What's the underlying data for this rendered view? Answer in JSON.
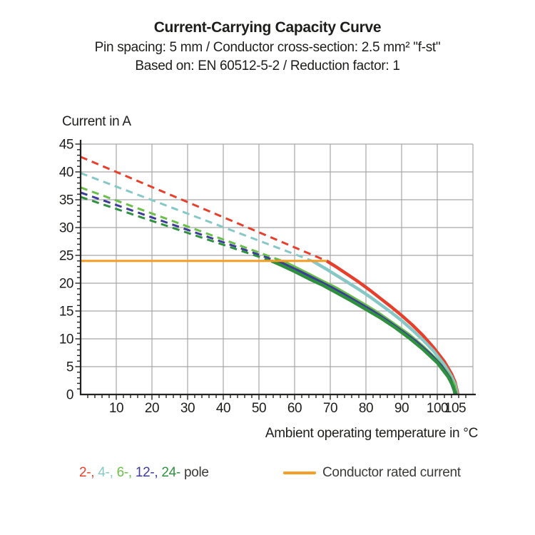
{
  "header": {
    "title": "Current-Carrying Capacity Curve",
    "subtitle_spec": "Pin spacing: 5 mm / Conductor cross-section: 2.5 mm² \"f-st\"",
    "subtitle_standard": "Based on: EN 60512-5-2 / Reduction factor: 1"
  },
  "axes": {
    "y_title": "Current in A",
    "x_title": "Ambient operating temperature in °C"
  },
  "legend": {
    "pole_items": [
      {
        "name": "2-pole",
        "label": "2-",
        "color": "#e6402d"
      },
      {
        "name": "4-pole",
        "label": "4-",
        "color": "#87c8c6"
      },
      {
        "name": "6-pole",
        "label": "6-",
        "color": "#6abf4a"
      },
      {
        "name": "12-pole",
        "label": "12-",
        "color": "#3e3c99"
      },
      {
        "name": "24-pole",
        "label": "24-",
        "color": "#2f9140"
      }
    ],
    "pole_suffix": "pole",
    "rated_label": "Conductor rated current",
    "rated_color": "#f59d25"
  },
  "chart_data": {
    "type": "line",
    "title": "Current-Carrying Capacity Curve",
    "xlabel": "Ambient operating temperature in °C",
    "ylabel": "Current in A",
    "xlim": [
      0,
      110
    ],
    "ylim": [
      0,
      45
    ],
    "grid": {
      "x_lines": [
        10,
        20,
        30,
        40,
        50,
        60,
        70,
        80,
        90,
        100,
        110
      ],
      "y_lines": [
        5,
        10,
        15,
        20,
        25,
        30,
        35,
        40,
        45
      ],
      "color": "#a6a6a6"
    },
    "x_major_ticks": [
      10,
      20,
      30,
      40,
      50,
      60,
      70,
      80,
      90,
      100,
      105
    ],
    "x_minor_step": 2,
    "y_major_ticks": [
      0,
      5,
      10,
      15,
      20,
      25,
      30,
      35,
      40,
      45
    ],
    "y_minor_step": 1,
    "axis_color": "#222220",
    "rated_current": {
      "label": "Conductor rated current",
      "value": 24,
      "x_start": 0,
      "x_end": 69,
      "color": "#f59d25"
    },
    "series": [
      {
        "name": "2-pole",
        "color": "#e6402d",
        "dashed": [
          [
            0,
            42.7
          ],
          [
            69,
            24
          ]
        ],
        "solid": [
          [
            69,
            24
          ],
          [
            72,
            22.8
          ],
          [
            75,
            21.5
          ],
          [
            78,
            20.2
          ],
          [
            81,
            18.8
          ],
          [
            84,
            17.3
          ],
          [
            87,
            15.8
          ],
          [
            90,
            14.2
          ],
          [
            93,
            12.5
          ],
          [
            96,
            10.6
          ],
          [
            99,
            8.4
          ],
          [
            102,
            5.9
          ],
          [
            104,
            3.7
          ],
          [
            105,
            2.2
          ],
          [
            105.8,
            0
          ]
        ]
      },
      {
        "name": "4-pole",
        "color": "#87c8c6",
        "dashed": [
          [
            0,
            39.8
          ],
          [
            65,
            24
          ]
        ],
        "solid": [
          [
            65,
            24
          ],
          [
            69,
            22.5
          ],
          [
            72,
            21.3
          ],
          [
            75,
            20.1
          ],
          [
            78,
            18.9
          ],
          [
            81,
            17.6
          ],
          [
            84,
            16.2
          ],
          [
            87,
            14.8
          ],
          [
            90,
            13.3
          ],
          [
            93,
            11.6
          ],
          [
            96,
            9.8
          ],
          [
            99,
            7.8
          ],
          [
            102,
            5.3
          ],
          [
            104,
            3.2
          ],
          [
            105,
            1.8
          ],
          [
            105.6,
            0
          ]
        ]
      },
      {
        "name": "6-pole",
        "color": "#6abf4a",
        "dashed": [
          [
            0,
            37.2
          ],
          [
            56.5,
            24
          ]
        ],
        "solid": [
          [
            56.5,
            24
          ],
          [
            60,
            22.9
          ],
          [
            64,
            21.6
          ],
          [
            68,
            20.3
          ],
          [
            72,
            19.0
          ],
          [
            76,
            17.5
          ],
          [
            80,
            16.0
          ],
          [
            84,
            14.4
          ],
          [
            88,
            12.6
          ],
          [
            92,
            10.8
          ],
          [
            96,
            8.6
          ],
          [
            100,
            6.1
          ],
          [
            103,
            3.7
          ],
          [
            104.7,
            1.7
          ],
          [
            105.4,
            0
          ]
        ]
      },
      {
        "name": "12-pole",
        "color": "#3e3c99",
        "dashed": [
          [
            0,
            36.3
          ],
          [
            55,
            24
          ]
        ],
        "solid": [
          [
            55,
            24
          ],
          [
            58,
            23.1
          ],
          [
            62,
            21.9
          ],
          [
            66,
            20.6
          ],
          [
            70,
            19.3
          ],
          [
            74,
            17.9
          ],
          [
            78,
            16.4
          ],
          [
            82,
            14.9
          ],
          [
            86,
            13.2
          ],
          [
            90,
            11.4
          ],
          [
            94,
            9.5
          ],
          [
            98,
            7.2
          ],
          [
            101,
            5.2
          ],
          [
            103.5,
            2.9
          ],
          [
            105.2,
            0
          ]
        ]
      },
      {
        "name": "24-pole",
        "color": "#2f9140",
        "dashed": [
          [
            0,
            35.5
          ],
          [
            53.5,
            24
          ]
        ],
        "solid": [
          [
            53.5,
            24
          ],
          [
            56,
            23.3
          ],
          [
            60,
            22.1
          ],
          [
            64,
            20.8
          ],
          [
            68,
            19.6
          ],
          [
            72,
            18.2
          ],
          [
            76,
            16.8
          ],
          [
            80,
            15.3
          ],
          [
            84,
            13.8
          ],
          [
            88,
            12.1
          ],
          [
            92,
            10.2
          ],
          [
            96,
            8.1
          ],
          [
            100,
            5.7
          ],
          [
            103,
            3.2
          ],
          [
            104.5,
            1.4
          ],
          [
            105,
            0
          ]
        ]
      }
    ]
  }
}
